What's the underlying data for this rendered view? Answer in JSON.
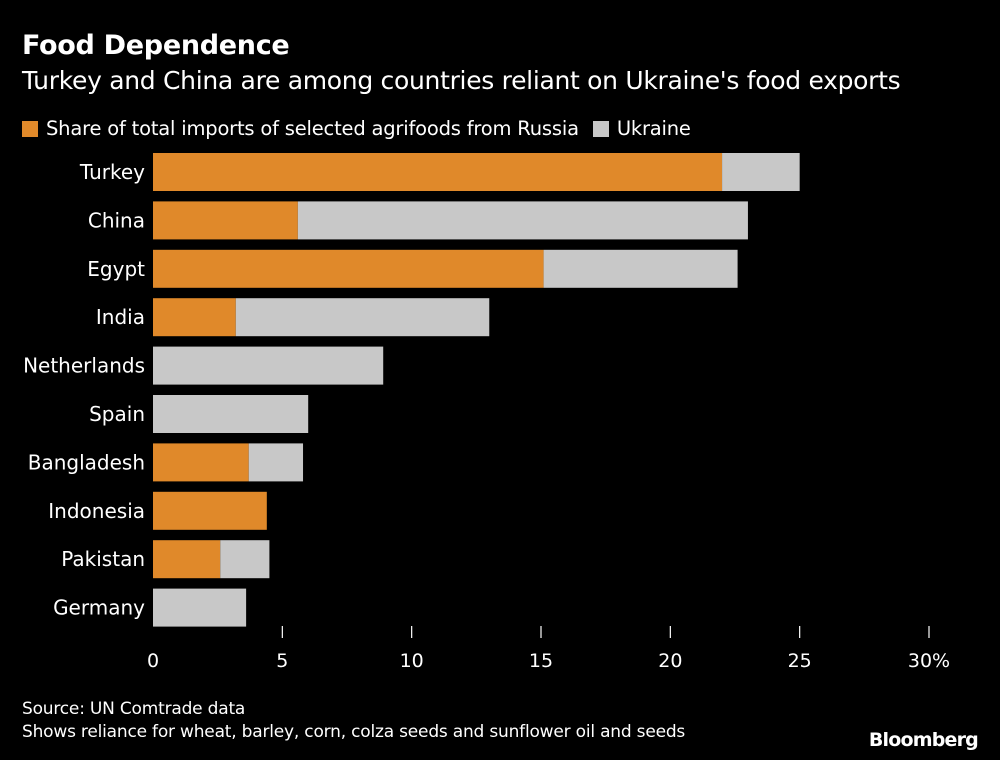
{
  "colors": {
    "background": "#000000",
    "russia": "#e0892a",
    "ukraine": "#c8c8c8",
    "text": "#ffffff"
  },
  "footer": {
    "source": "Source: UN Comtrade data",
    "note": "Shows reliance for wheat, barley, corn, colza seeds and sunflower oil and seeds",
    "brand": "Bloomberg"
  },
  "chart_data": {
    "type": "bar",
    "orientation": "horizontal",
    "stacked": true,
    "title": "Food Dependence",
    "subtitle": "Turkey and China are among countries reliant on Ukraine's food exports",
    "categories": [
      "Turkey",
      "China",
      "Egypt",
      "India",
      "Netherlands",
      "Spain",
      "Bangladesh",
      "Indonesia",
      "Pakistan",
      "Germany"
    ],
    "series": [
      {
        "name": "Share of total imports of selected agrifoods from Russia",
        "color_key": "russia",
        "values": [
          22.0,
          5.6,
          15.1,
          3.2,
          0,
          0,
          3.7,
          4.4,
          2.6,
          0
        ]
      },
      {
        "name": "Ukraine",
        "color_key": "ukraine",
        "values": [
          3.0,
          17.4,
          7.5,
          9.8,
          8.9,
          6.0,
          2.1,
          0,
          1.9,
          3.6
        ]
      }
    ],
    "xlim": [
      0,
      30
    ],
    "xticks": [
      {
        "value": 0,
        "label": "0"
      },
      {
        "value": 5,
        "label": "5"
      },
      {
        "value": 10,
        "label": "10"
      },
      {
        "value": 15,
        "label": "15"
      },
      {
        "value": 20,
        "label": "20"
      },
      {
        "value": 25,
        "label": "25"
      },
      {
        "value": 30,
        "label": "30%"
      }
    ],
    "legend_position": "top-left",
    "grid": false
  }
}
